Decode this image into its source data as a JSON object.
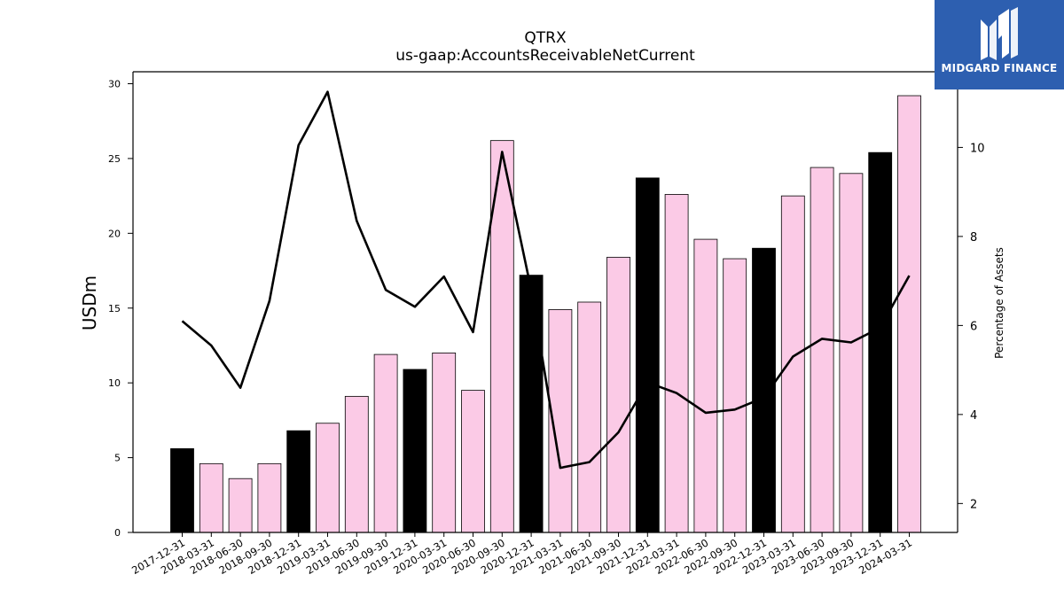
{
  "chart_data": {
    "type": "bar",
    "title": "QTRX",
    "subtitle": "us-gaap:AccountsReceivableNetCurrent",
    "ylabel": "USDm",
    "y2label": "Percentage of Assets",
    "ylim": [
      0,
      30.8
    ],
    "y2lim": [
      1.35,
      11.7
    ],
    "yticks": [
      0,
      5,
      10,
      15,
      20,
      25,
      30
    ],
    "y2ticks": [
      2,
      4,
      6,
      8,
      10
    ],
    "categories": [
      "2017-12-31",
      "2018-03-31",
      "2018-06-30",
      "2018-09-30",
      "2018-12-31",
      "2019-03-31",
      "2019-06-30",
      "2019-09-30",
      "2019-12-31",
      "2020-03-31",
      "2020-06-30",
      "2020-09-30",
      "2020-12-31",
      "2021-03-31",
      "2021-06-30",
      "2021-09-30",
      "2021-12-31",
      "2022-03-31",
      "2022-06-30",
      "2022-09-30",
      "2022-12-31",
      "2023-03-31",
      "2023-06-30",
      "2023-09-30",
      "2023-12-31",
      "2024-03-31"
    ],
    "series": [
      {
        "type": "bar",
        "values": [
          5.6,
          4.6,
          3.6,
          4.6,
          6.8,
          7.3,
          9.1,
          11.9,
          10.9,
          12.0,
          9.5,
          26.2,
          17.2,
          14.9,
          15.4,
          18.4,
          23.7,
          22.6,
          19.6,
          18.3,
          19.0,
          22.5,
          24.4,
          24.0,
          25.4,
          29.2
        ],
        "axis": "left"
      },
      {
        "type": "line",
        "values": [
          6.1,
          5.55,
          4.6,
          6.55,
          10.05,
          11.25,
          8.35,
          6.8,
          6.42,
          7.1,
          5.85,
          9.9,
          6.8,
          2.8,
          2.93,
          3.6,
          4.72,
          4.48,
          4.04,
          4.11,
          4.38,
          5.3,
          5.7,
          5.62,
          5.95,
          7.12
        ],
        "axis": "right"
      }
    ],
    "colors": {
      "bar_pink": "#fbcae6",
      "bar_black": "#000000",
      "line": "#000000"
    },
    "grid": false,
    "legend": "none"
  },
  "brand": {
    "name": "MIDGARD FINANCE",
    "color": "#2d5fb0",
    "icon": "midgard-logo-icon"
  }
}
